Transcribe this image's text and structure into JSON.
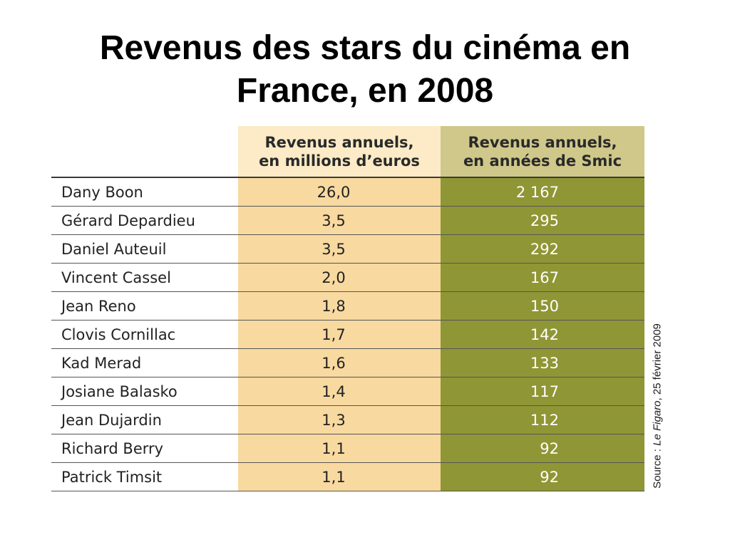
{
  "title": {
    "line1": "Revenus des stars du cinéma en",
    "line2": "France, en 2008"
  },
  "chart_data": {
    "type": "table",
    "columns": [
      "",
      "Revenus annuels, en millions d’euros",
      "Revenus annuels, en années de Smic"
    ],
    "column_lines": [
      [
        "Revenus annuels,",
        "en millions d’euros"
      ],
      [
        "Revenus annuels,",
        "en années de Smic"
      ]
    ],
    "rows": [
      {
        "name": "Dany Boon",
        "euros": "26,0",
        "smic": "2 167"
      },
      {
        "name": "Gérard Depardieu",
        "euros": "3,5",
        "smic": "295"
      },
      {
        "name": "Daniel Auteuil",
        "euros": "3,5",
        "smic": "292"
      },
      {
        "name": "Vincent Cassel",
        "euros": "2,0",
        "smic": "167"
      },
      {
        "name": "Jean Reno",
        "euros": "1,8",
        "smic": "150"
      },
      {
        "name": "Clovis Cornillac",
        "euros": "1,7",
        "smic": "142"
      },
      {
        "name": "Kad Merad",
        "euros": "1,6",
        "smic": "133"
      },
      {
        "name": "Josiane Balasko",
        "euros": "1,4",
        "smic": "117"
      },
      {
        "name": "Jean Dujardin",
        "euros": "1,3",
        "smic": "112"
      },
      {
        "name": "Richard Berry",
        "euros": "1,1",
        "smic": "92"
      },
      {
        "name": "Patrick Timsit",
        "euros": "1,1",
        "smic": "92"
      }
    ],
    "source": {
      "prefix": "Source : ",
      "publication": "Le Figaro",
      "date": ", 25 février 2009"
    },
    "colors": {
      "euros_column": "#f8d9a0",
      "euros_header": "#fcebc6",
      "smic_column": "#8f9635",
      "smic_header": "#cfc88a"
    }
  }
}
